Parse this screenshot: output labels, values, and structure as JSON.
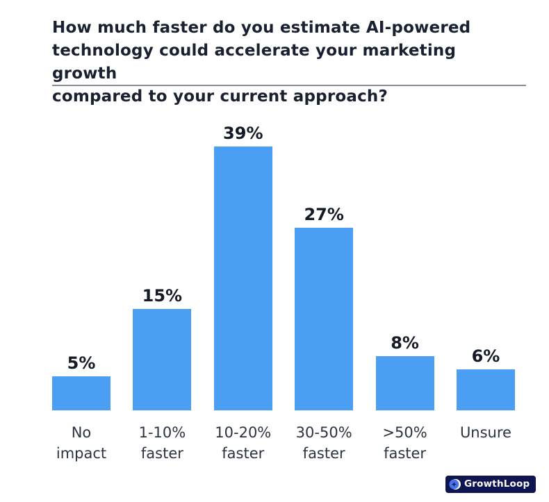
{
  "header": {
    "title_lines": [
      "How much faster do you estimate AI-powered",
      "technology could accelerate your marketing growth",
      "compared to your current approach?"
    ]
  },
  "chart_data": {
    "type": "bar",
    "title": "How much faster do you estimate AI-powered technology could accelerate your marketing growth compared to your current approach?",
    "categories": [
      "No impact",
      "1-10% faster",
      "10-20% faster",
      "30-50% faster",
      ">50% faster",
      "Unsure"
    ],
    "category_labels_multiline": [
      "No\nimpact",
      "1-10%\nfaster",
      "10-20%\nfaster",
      "30-50%\nfaster",
      ">50%\nfaster",
      "Unsure"
    ],
    "values": [
      5,
      15,
      39,
      27,
      8,
      6
    ],
    "value_labels": [
      "5%",
      "15%",
      "39%",
      "27%",
      "8%",
      "6%"
    ],
    "xlabel": "",
    "ylabel": "",
    "ylim": [
      0,
      40
    ],
    "grid": false,
    "legend": false,
    "bar_color": "#4A9EF4"
  },
  "branding": {
    "logo_text": "GrowthLoop",
    "logo_bg": "#0F1550",
    "logo_icon_circle_color": "#4A72E9",
    "logo_icon_star_color": "#0F1550",
    "logo_icon_crescent_color": "#FFFFFF"
  },
  "colors": {
    "background": "#FFFFFF",
    "title_text": "#192030",
    "value_label_text": "#141B26",
    "category_label_text": "#2B3340",
    "divider": "#878D96"
  }
}
